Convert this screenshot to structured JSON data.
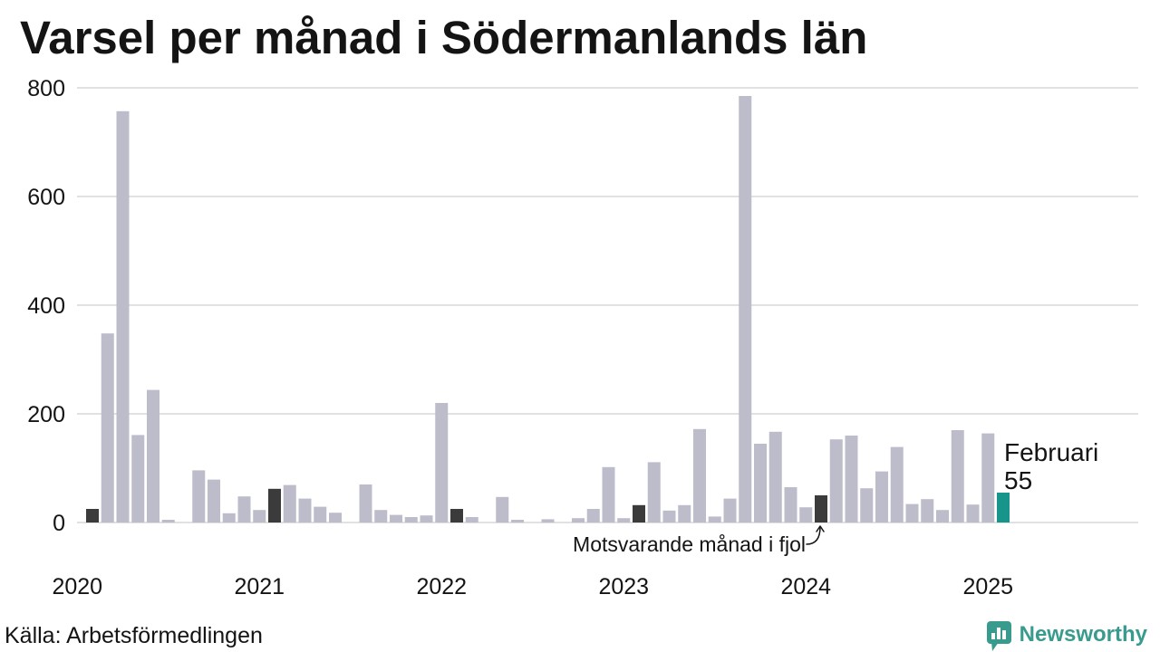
{
  "chart_data": {
    "type": "bar",
    "title": "Varsel per månad i Södermanlands län",
    "ylim": [
      0,
      800
    ],
    "yticks": [
      0,
      200,
      400,
      600,
      800
    ],
    "xticks": [
      "2020",
      "2021",
      "2022",
      "2023",
      "2024",
      "2025"
    ],
    "grid": true,
    "x": [
      "2020-01",
      "2020-02",
      "2020-03",
      "2020-04",
      "2020-05",
      "2020-06",
      "2020-07",
      "2020-08",
      "2020-09",
      "2020-10",
      "2020-11",
      "2020-12",
      "2021-01",
      "2021-02",
      "2021-03",
      "2021-04",
      "2021-05",
      "2021-06",
      "2021-07",
      "2021-08",
      "2021-09",
      "2021-10",
      "2021-11",
      "2021-12",
      "2022-01",
      "2022-02",
      "2022-03",
      "2022-04",
      "2022-05",
      "2022-06",
      "2022-07",
      "2022-08",
      "2022-09",
      "2022-10",
      "2022-11",
      "2022-12",
      "2023-01",
      "2023-02",
      "2023-03",
      "2023-04",
      "2023-05",
      "2023-06",
      "2023-07",
      "2023-08",
      "2023-09",
      "2023-10",
      "2023-11",
      "2023-12",
      "2024-01",
      "2024-02",
      "2024-03",
      "2024-04",
      "2024-05",
      "2024-06",
      "2024-07",
      "2024-08",
      "2024-09",
      "2024-10",
      "2024-11",
      "2024-12",
      "2025-01",
      "2025-02"
    ],
    "values": [
      0,
      25,
      348,
      757,
      161,
      244,
      5,
      0,
      96,
      79,
      17,
      48,
      23,
      62,
      69,
      44,
      29,
      18,
      0,
      70,
      23,
      14,
      10,
      13,
      220,
      25,
      10,
      0,
      47,
      5,
      0,
      6,
      0,
      8,
      25,
      102,
      8,
      32,
      111,
      22,
      32,
      172,
      11,
      44,
      785,
      145,
      167,
      65,
      28,
      50,
      153,
      160,
      63,
      94,
      139,
      34,
      43,
      23,
      170,
      33,
      164,
      55
    ],
    "highlight": {
      "previous_years": [
        "2020-02",
        "2021-02",
        "2022-02",
        "2023-02",
        "2024-02"
      ],
      "current": "2025-02"
    }
  },
  "annotations": {
    "current_month": "Februari",
    "current_value": 55,
    "previous_label": "Motsvarande månad i fjol",
    "previous_target": "2024-02"
  },
  "source": "Källa: Arbetsförmedlingen",
  "logo": {
    "name": "Newsworthy",
    "icon": "newsworthy-logo-icon"
  },
  "colors": {
    "bar": "#bdbccb",
    "previous_years": "#3b3b3b",
    "current": "#18958a",
    "grid": "#e1e1e1",
    "text": "#141414",
    "brand": "#389b8e"
  }
}
